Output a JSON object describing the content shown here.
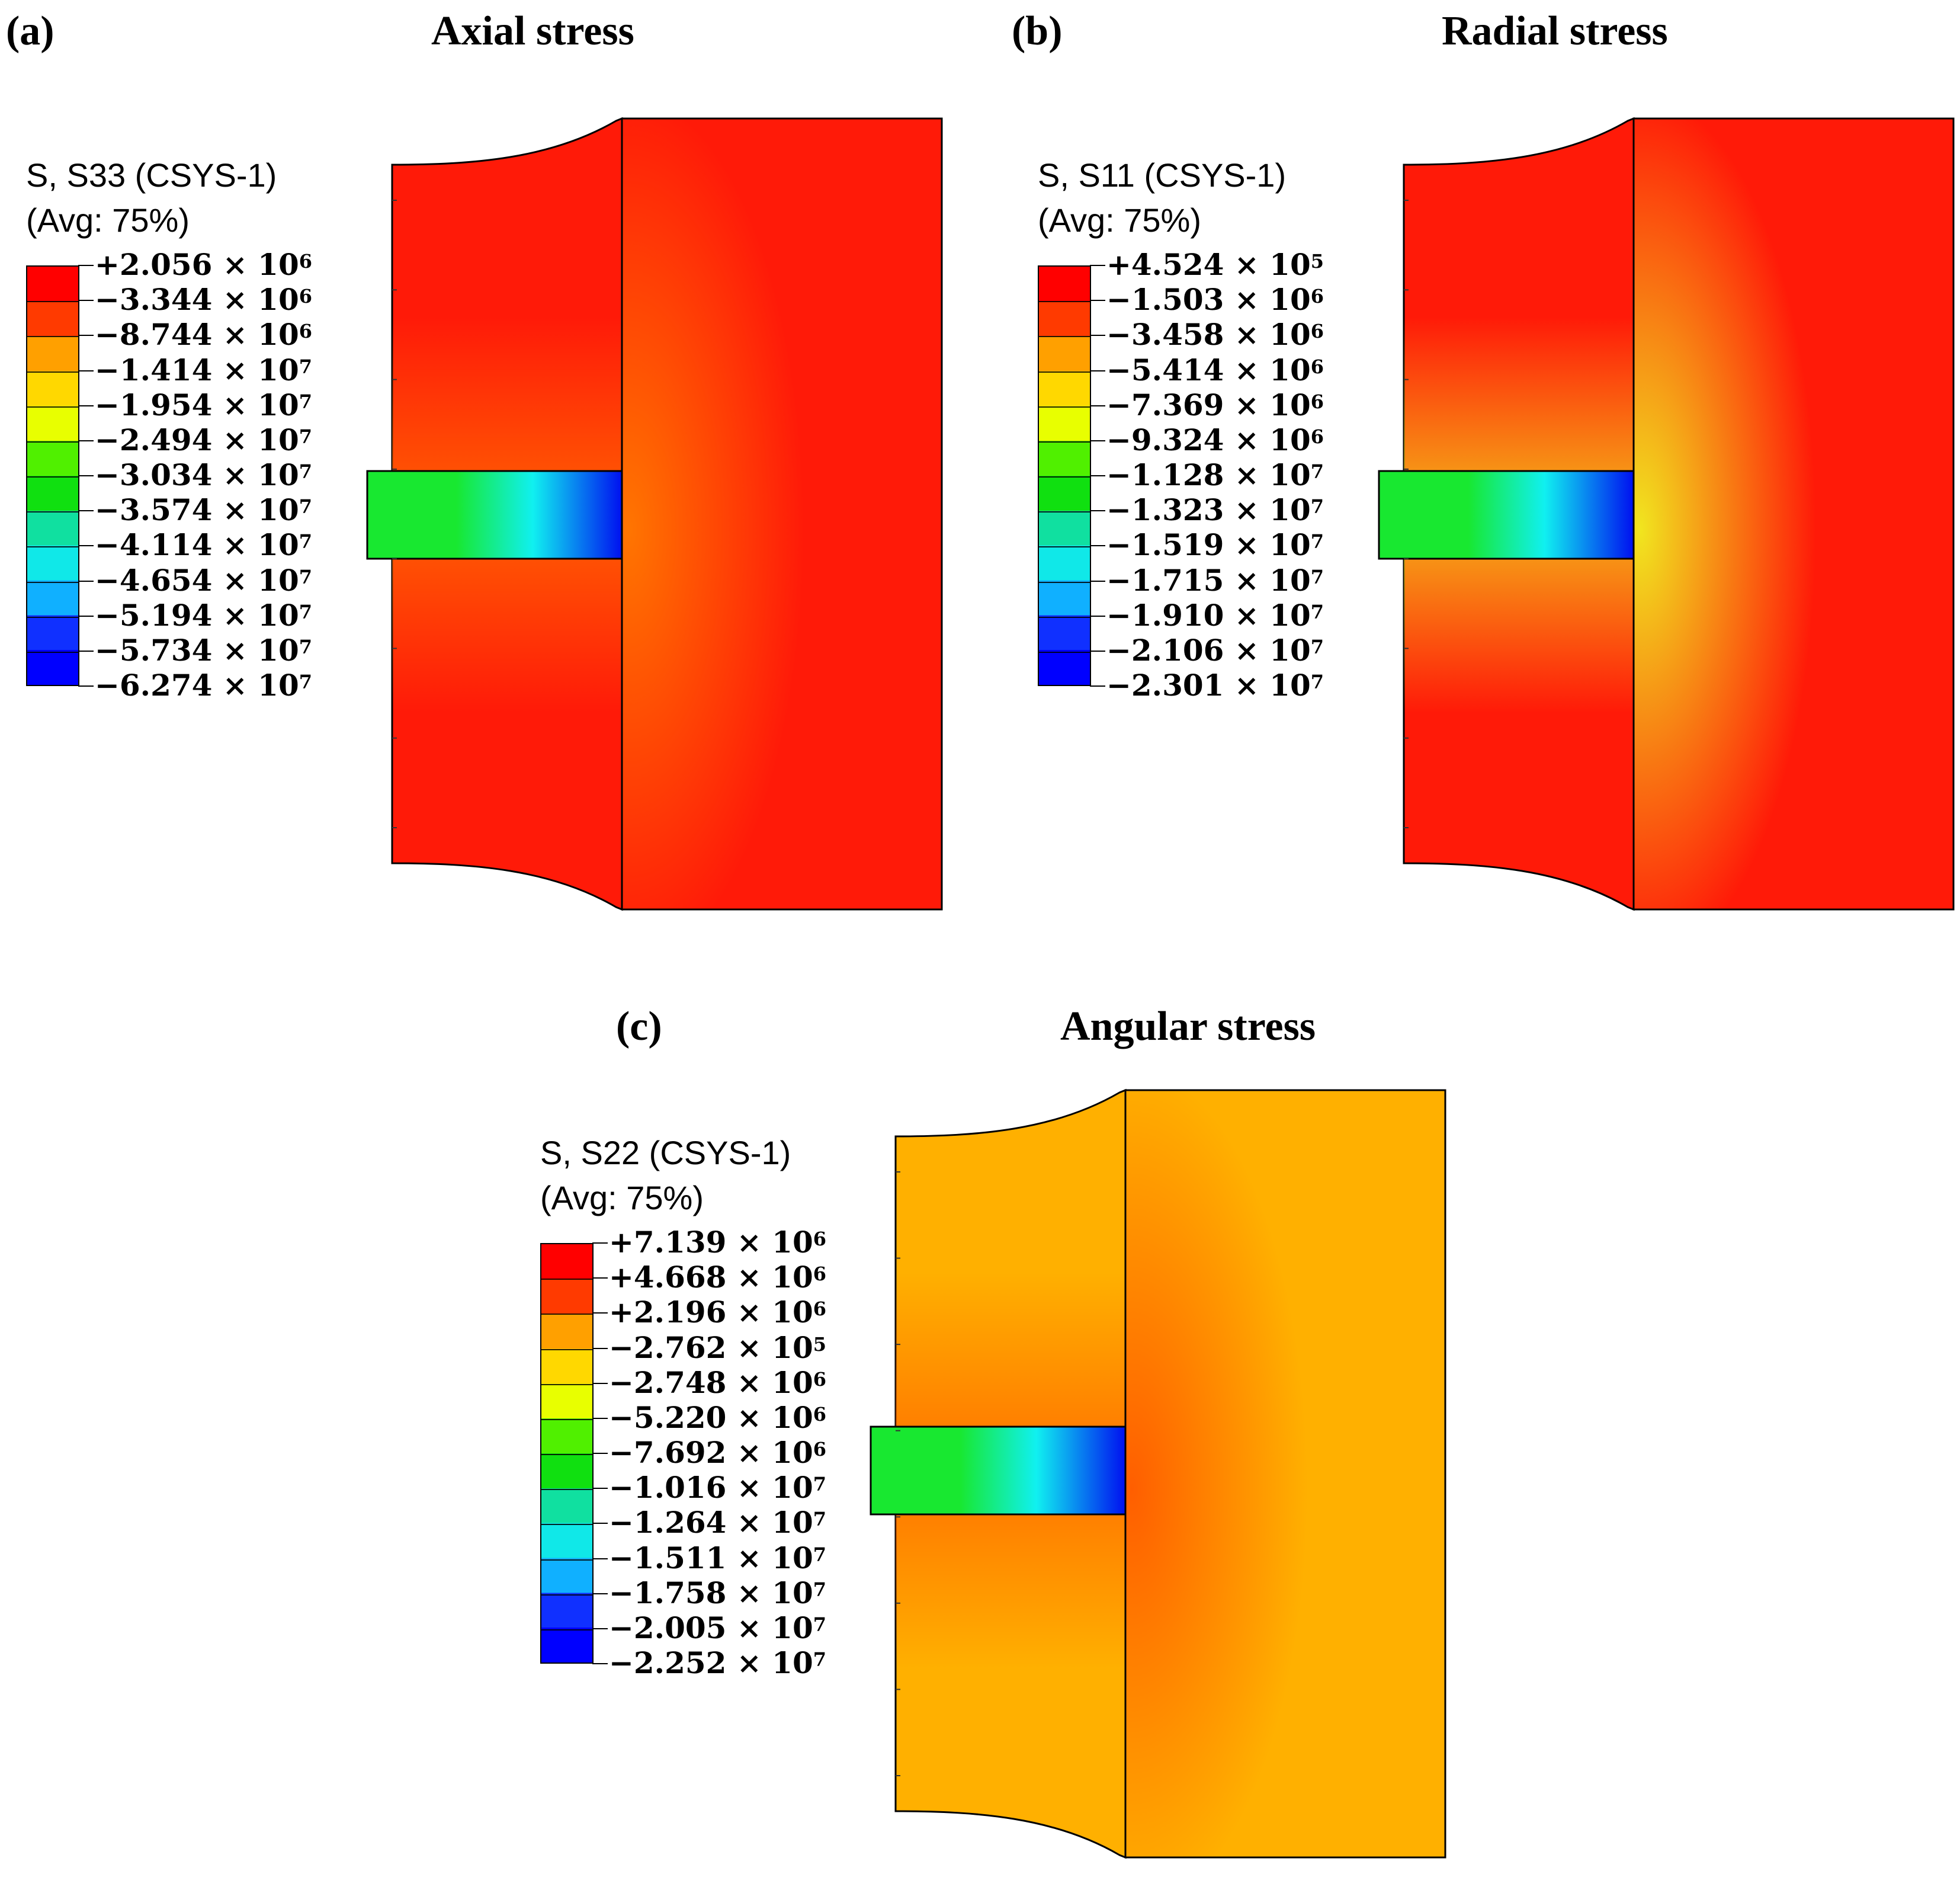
{
  "panels": [
    {
      "letter": "(a)",
      "title": "Axial stress",
      "legend": {
        "variable": "S, S33 (CSYS-1)",
        "averaging": "(Avg: 75%)",
        "values": [
          {
            "mantissa": "+2.056",
            "exponent": "6"
          },
          {
            "mantissa": "−3.344",
            "exponent": "6"
          },
          {
            "mantissa": "−8.744",
            "exponent": "6"
          },
          {
            "mantissa": "−1.414",
            "exponent": "7"
          },
          {
            "mantissa": "−1.954",
            "exponent": "7"
          },
          {
            "mantissa": "−2.494",
            "exponent": "7"
          },
          {
            "mantissa": "−3.034",
            "exponent": "7"
          },
          {
            "mantissa": "−3.574",
            "exponent": "7"
          },
          {
            "mantissa": "−4.114",
            "exponent": "7"
          },
          {
            "mantissa": "−4.654",
            "exponent": "7"
          },
          {
            "mantissa": "−5.194",
            "exponent": "7"
          },
          {
            "mantissa": "−5.734",
            "exponent": "7"
          },
          {
            "mantissa": "−6.274",
            "exponent": "7"
          }
        ]
      },
      "colors": {
        "body": "#ff1a08",
        "glow": "#ff7a00",
        "insert_left": "#18e830",
        "insert_mid": "#10f0f0",
        "insert_right": "#0010f0"
      }
    },
    {
      "letter": "(b)",
      "title": "Radial stress",
      "legend": {
        "variable": "S, S11 (CSYS-1)",
        "averaging": "(Avg: 75%)",
        "values": [
          {
            "mantissa": "+4.524",
            "exponent": "5"
          },
          {
            "mantissa": "−1.503",
            "exponent": "6"
          },
          {
            "mantissa": "−3.458",
            "exponent": "6"
          },
          {
            "mantissa": "−5.414",
            "exponent": "6"
          },
          {
            "mantissa": "−7.369",
            "exponent": "6"
          },
          {
            "mantissa": "−9.324",
            "exponent": "6"
          },
          {
            "mantissa": "−1.128",
            "exponent": "7"
          },
          {
            "mantissa": "−1.323",
            "exponent": "7"
          },
          {
            "mantissa": "−1.519",
            "exponent": "7"
          },
          {
            "mantissa": "−1.715",
            "exponent": "7"
          },
          {
            "mantissa": "−1.910",
            "exponent": "7"
          },
          {
            "mantissa": "−2.106",
            "exponent": "7"
          },
          {
            "mantissa": "−2.301",
            "exponent": "7"
          }
        ]
      },
      "colors": {
        "body": "#ff1a08",
        "glow": "#f0f020",
        "insert_left": "#18e830",
        "insert_mid": "#10f0f0",
        "insert_right": "#0010f0"
      }
    },
    {
      "letter": "(c)",
      "title": "Angular stress",
      "legend": {
        "variable": "S, S22 (CSYS-1)",
        "averaging": "(Avg: 75%)",
        "values": [
          {
            "mantissa": "+7.139",
            "exponent": "6"
          },
          {
            "mantissa": "+4.668",
            "exponent": "6"
          },
          {
            "mantissa": "+2.196",
            "exponent": "6"
          },
          {
            "mantissa": "−2.762",
            "exponent": "5"
          },
          {
            "mantissa": "−2.748",
            "exponent": "6"
          },
          {
            "mantissa": "−5.220",
            "exponent": "6"
          },
          {
            "mantissa": "−7.692",
            "exponent": "6"
          },
          {
            "mantissa": "−1.016",
            "exponent": "7"
          },
          {
            "mantissa": "−1.264",
            "exponent": "7"
          },
          {
            "mantissa": "−1.511",
            "exponent": "7"
          },
          {
            "mantissa": "−1.758",
            "exponent": "7"
          },
          {
            "mantissa": "−2.005",
            "exponent": "7"
          },
          {
            "mantissa": "−2.252",
            "exponent": "7"
          }
        ]
      },
      "colors": {
        "body": "#ffb000",
        "glow": "#ff5a00",
        "insert_left": "#18e830",
        "insert_mid": "#10f0f0",
        "insert_right": "#0010f0"
      }
    }
  ],
  "colormap": [
    "#ff0000",
    "#ff3a00",
    "#ff6a00",
    "#ffa000",
    "#ffd800",
    "#e8ff00",
    "#a8ff00",
    "#50f000",
    "#10e010",
    "#10e060",
    "#10e0a0",
    "#10e8e8",
    "#10b0ff",
    "#1070ff",
    "#1030ff",
    "#0000ff"
  ]
}
